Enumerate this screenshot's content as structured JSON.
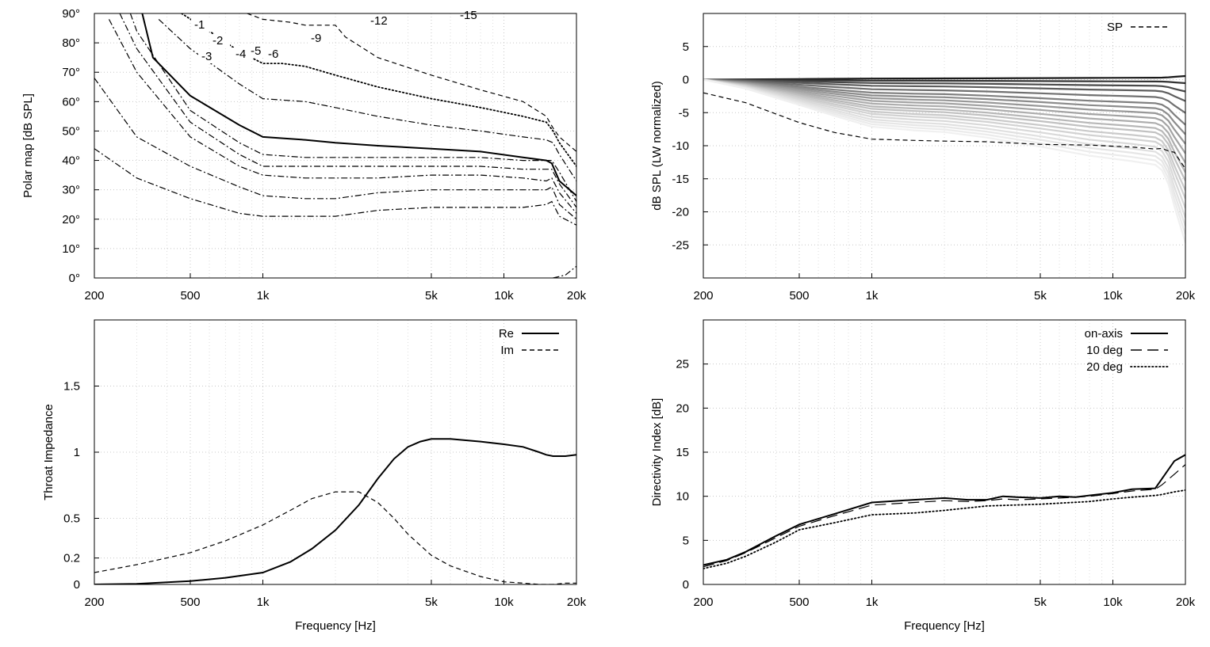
{
  "chart_data": [
    {
      "id": "polar",
      "type": "contour",
      "title": "",
      "xlabel": "",
      "ylabel": "Polar map [dB SPL]",
      "xscale": "log",
      "xlim": [
        200,
        20000
      ],
      "ylim": [
        0,
        90
      ],
      "xticks": [
        {
          "v": 200,
          "t": "200"
        },
        {
          "v": 500,
          "t": "500"
        },
        {
          "v": 1000,
          "t": "1k"
        },
        {
          "v": 5000,
          "t": "5k"
        },
        {
          "v": 10000,
          "t": "10k"
        },
        {
          "v": 20000,
          "t": "20k"
        }
      ],
      "yticks": [
        {
          "v": 0,
          "t": "0°"
        },
        {
          "v": 10,
          "t": "10°"
        },
        {
          "v": 20,
          "t": "20°"
        },
        {
          "v": 30,
          "t": "30°"
        },
        {
          "v": 40,
          "t": "40°"
        },
        {
          "v": 50,
          "t": "50°"
        },
        {
          "v": 60,
          "t": "60°"
        },
        {
          "v": 70,
          "t": "70°"
        },
        {
          "v": 80,
          "t": "80°"
        },
        {
          "v": 90,
          "t": "90°"
        }
      ],
      "grid": true,
      "series": [
        {
          "name": "-1",
          "style": "dashdot",
          "label": {
            "t": "-1",
            "x": 245,
            "y": 36
          },
          "x": [
            200,
            300,
            500,
            800,
            1000,
            1500,
            2000,
            3000,
            5000,
            8000,
            12000,
            15000,
            15800,
            17000,
            20000
          ],
          "y": [
            44,
            34,
            27,
            22,
            21,
            21,
            21,
            23,
            24,
            24,
            24,
            25,
            26,
            21,
            18
          ]
        },
        {
          "name": "-2",
          "style": "dashdot",
          "label": {
            "t": "-2",
            "x": 268,
            "y": 56
          },
          "x": [
            200,
            300,
            500,
            800,
            1000,
            1500,
            2000,
            3000,
            5000,
            8000,
            12000,
            15000,
            15800,
            17000,
            20000
          ],
          "y": [
            68,
            48,
            38,
            31,
            28,
            27,
            27,
            29,
            30,
            30,
            30,
            30,
            31,
            25,
            20
          ]
        },
        {
          "name": "-3",
          "style": "dashdot",
          "label": {
            "t": "-3",
            "x": 254,
            "y": 76
          },
          "x": [
            230,
            300,
            500,
            800,
            1000,
            1500,
            2000,
            3000,
            5000,
            8000,
            12000,
            15000,
            15800,
            17000,
            20000
          ],
          "y": [
            88,
            70,
            48,
            38,
            35,
            34,
            34,
            34,
            35,
            35,
            34,
            33,
            34,
            29,
            22
          ]
        },
        {
          "name": "-4",
          "style": "dashdot",
          "label": {
            "t": "-4",
            "x": 297,
            "y": 73
          },
          "x": [
            255,
            300,
            500,
            800,
            1000,
            1500,
            2000,
            3000,
            5000,
            8000,
            12000,
            15000,
            15800,
            17000,
            20000
          ],
          "y": [
            90,
            78,
            53,
            42,
            38,
            38,
            38,
            38,
            38,
            38,
            37,
            37,
            37,
            32,
            24
          ]
        },
        {
          "name": "-5",
          "style": "dashdot",
          "label": {
            "t": "-5",
            "x": 316,
            "y": 69
          },
          "x": [
            282,
            300,
            500,
            800,
            1000,
            1500,
            2000,
            3000,
            5000,
            8000,
            12000,
            15000,
            15800,
            17000,
            20000
          ],
          "y": [
            90,
            84,
            57,
            46,
            42,
            41,
            41,
            41,
            41,
            41,
            40,
            40,
            40,
            36,
            26
          ]
        },
        {
          "name": "-6",
          "style": "solid",
          "label": {
            "t": "-6",
            "x": 338,
            "y": 73
          },
          "x": [
            316,
            350,
            500,
            800,
            1000,
            1500,
            2000,
            3000,
            5000,
            8000,
            12000,
            15000,
            15800,
            17000,
            20000
          ],
          "y": [
            90,
            75,
            62,
            52,
            48,
            47,
            46,
            45,
            44,
            43,
            41,
            40,
            39,
            33,
            28
          ]
        },
        {
          "name": "-9",
          "style": "dashdot",
          "label": {
            "t": "-9",
            "x": 392,
            "y": 53
          },
          "x": [
            370,
            500,
            800,
            1000,
            1500,
            2000,
            3000,
            5000,
            8000,
            12000,
            15000,
            16000,
            17000,
            20000
          ],
          "y": [
            88,
            78,
            66,
            61,
            60,
            58,
            55,
            52,
            50,
            48,
            47,
            46,
            42,
            33
          ]
        },
        {
          "name": "-12",
          "style": "dotted",
          "label": {
            "t": "-12",
            "x": 467,
            "y": 31
          },
          "x": [
            460,
            600,
            800,
            1000,
            1200,
            1500,
            2000,
            3000,
            5000,
            8000,
            12000,
            15000,
            16000,
            17000,
            20000
          ],
          "y": [
            90,
            84,
            77,
            73,
            73,
            72,
            69,
            65,
            61,
            58,
            55,
            53,
            50,
            46,
            38
          ]
        },
        {
          "name": "-15",
          "style": "dashed",
          "label": {
            "t": "-15",
            "x": 580,
            "y": 24
          },
          "x": [
            860,
            1000,
            1300,
            1500,
            1800,
            2000,
            2200,
            3000,
            5000,
            8000,
            12000,
            15000,
            16000,
            17000,
            20000
          ],
          "y": [
            90,
            88,
            87,
            86,
            86,
            86,
            82,
            75,
            69,
            64,
            60,
            55,
            51,
            48,
            43
          ]
        },
        {
          "name": "bottom",
          "style": "dashdot",
          "label": null,
          "x": [
            16000,
            18000,
            20000
          ],
          "y": [
            0,
            1,
            4
          ]
        }
      ]
    },
    {
      "id": "spl",
      "type": "line",
      "title": "",
      "xlabel": "",
      "ylabel": "dB SPL (LW normalized)",
      "xscale": "log",
      "xlim": [
        200,
        20000
      ],
      "ylim": [
        -30,
        10
      ],
      "xticks": [
        {
          "v": 200,
          "t": "200"
        },
        {
          "v": 500,
          "t": "500"
        },
        {
          "v": 1000,
          "t": "1k"
        },
        {
          "v": 5000,
          "t": "5k"
        },
        {
          "v": 10000,
          "t": "10k"
        },
        {
          "v": 20000,
          "t": "20k"
        }
      ],
      "yticks": [
        {
          "v": 5,
          "t": "5"
        },
        {
          "v": 0,
          "t": "0"
        },
        {
          "v": -5,
          "t": "-5"
        },
        {
          "v": -10,
          "t": "-10"
        },
        {
          "v": -15,
          "t": "-15"
        },
        {
          "v": -20,
          "t": "-20"
        },
        {
          "v": -25,
          "t": "-25"
        }
      ],
      "grid": true,
      "legend": [
        {
          "name": "SP",
          "style": "dashed"
        }
      ],
      "family_x": [
        200,
        300,
        500,
        700,
        1000,
        1500,
        2000,
        3000,
        5000,
        8000,
        12000,
        15000,
        16000,
        17000,
        18000,
        20000
      ],
      "family_s": [
        0,
        0.1,
        0.28,
        0.4,
        0.52,
        0.56,
        0.58,
        0.64,
        0.74,
        0.84,
        0.9,
        0.94,
        1,
        1.15,
        1.4,
        1.8
      ],
      "family_mult": [
        0,
        -0.3,
        -1,
        -1.8,
        -2.8,
        -3.8,
        -4.6,
        -5.4,
        -6.2,
        -7,
        -7.8,
        -8.5,
        -9.3,
        -10,
        -10.8,
        -11.6,
        -12.3,
        -13,
        -13.7
      ],
      "family_colors": [
        "#1a1a1a",
        "#333333",
        "#4a4a4a",
        "#5e5e5e",
        "#707070",
        "#7f7f7f",
        "#8c8c8c",
        "#989898",
        "#a3a3a3",
        "#adadad",
        "#b7b7b7",
        "#c1c1c1",
        "#cacaca",
        "#d2d2d2",
        "#d9d9d9",
        "#e0e0e0",
        "#e6e6e6",
        "#ebebeb",
        "#f0f0f0"
      ],
      "series": [
        {
          "name": "SP",
          "style": "dashed",
          "x": [
            200,
            300,
            500,
            700,
            1000,
            1500,
            2000,
            3000,
            5000,
            8000,
            12000,
            15000,
            16000,
            17000,
            18000,
            20000
          ],
          "y": [
            -2,
            -3.5,
            -6.5,
            -8,
            -9,
            -9.2,
            -9.3,
            -9.4,
            -9.8,
            -9.9,
            -10.2,
            -10.5,
            -10.4,
            -10.8,
            -11,
            -13.5
          ]
        }
      ]
    },
    {
      "id": "impedance",
      "type": "line",
      "title": "",
      "xlabel": "Frequency [Hz]",
      "ylabel": "Throat Impedance",
      "xscale": "log",
      "xlim": [
        200,
        20000
      ],
      "ylim": [
        0,
        2
      ],
      "xticks": [
        {
          "v": 200,
          "t": "200"
        },
        {
          "v": 500,
          "t": "500"
        },
        {
          "v": 1000,
          "t": "1k"
        },
        {
          "v": 5000,
          "t": "5k"
        },
        {
          "v": 10000,
          "t": "10k"
        },
        {
          "v": 20000,
          "t": "20k"
        }
      ],
      "yticks": [
        {
          "v": 0,
          "t": "0"
        },
        {
          "v": 0.2,
          "t": "0.2"
        },
        {
          "v": 0.5,
          "t": "0.5"
        },
        {
          "v": 1,
          "t": "1"
        },
        {
          "v": 1.5,
          "t": "1.5"
        }
      ],
      "grid": true,
      "legend": [
        {
          "name": "Re",
          "style": "solid"
        },
        {
          "name": "Im",
          "style": "dashed"
        }
      ],
      "series": [
        {
          "name": "Re",
          "style": "solid",
          "x": [
            200,
            300,
            500,
            700,
            1000,
            1300,
            1600,
            2000,
            2500,
            3000,
            3500,
            4000,
            4500,
            5000,
            6000,
            8000,
            10000,
            12000,
            14000,
            15000,
            16000,
            18000,
            20000
          ],
          "y": [
            0,
            0.005,
            0.025,
            0.05,
            0.09,
            0.17,
            0.27,
            0.41,
            0.6,
            0.8,
            0.95,
            1.04,
            1.08,
            1.1,
            1.1,
            1.08,
            1.06,
            1.04,
            1,
            0.98,
            0.97,
            0.97,
            0.98
          ]
        },
        {
          "name": "Im",
          "style": "dashed",
          "x": [
            200,
            300,
            500,
            700,
            1000,
            1300,
            1600,
            2000,
            2500,
            3000,
            3500,
            4000,
            5000,
            6000,
            8000,
            10000,
            12000,
            14000,
            16000,
            18000,
            20000
          ],
          "y": [
            0.09,
            0.15,
            0.24,
            0.33,
            0.45,
            0.56,
            0.65,
            0.7,
            0.7,
            0.62,
            0.5,
            0.38,
            0.22,
            0.14,
            0.06,
            0.02,
            0.01,
            0,
            0,
            0.01,
            0.01
          ]
        }
      ]
    },
    {
      "id": "di",
      "type": "line",
      "title": "",
      "xlabel": "Frequency [Hz]",
      "ylabel": "Directivity Index [dB]",
      "xscale": "log",
      "xlim": [
        200,
        20000
      ],
      "ylim": [
        0,
        30
      ],
      "xticks": [
        {
          "v": 200,
          "t": "200"
        },
        {
          "v": 500,
          "t": "500"
        },
        {
          "v": 1000,
          "t": "1k"
        },
        {
          "v": 5000,
          "t": "5k"
        },
        {
          "v": 10000,
          "t": "10k"
        },
        {
          "v": 20000,
          "t": "20k"
        }
      ],
      "yticks": [
        {
          "v": 0,
          "t": "0"
        },
        {
          "v": 5,
          "t": "5"
        },
        {
          "v": 10,
          "t": "10"
        },
        {
          "v": 15,
          "t": "15"
        },
        {
          "v": 20,
          "t": "20"
        },
        {
          "v": 25,
          "t": "25"
        }
      ],
      "grid": true,
      "legend": [
        {
          "name": "on-axis",
          "style": "solid"
        },
        {
          "name": "10 deg",
          "style": "longdash"
        },
        {
          "name": "20 deg",
          "style": "dotted"
        }
      ],
      "series": [
        {
          "name": "on-axis",
          "style": "solid",
          "x": [
            200,
            250,
            300,
            400,
            500,
            700,
            1000,
            1500,
            2000,
            2500,
            3000,
            3500,
            4000,
            5000,
            6000,
            7000,
            8000,
            10000,
            12000,
            15000,
            16000,
            18000,
            20000
          ],
          "y": [
            2.2,
            2.8,
            3.7,
            5.5,
            6.8,
            8,
            9.3,
            9.6,
            9.8,
            9.6,
            9.6,
            10,
            9.9,
            9.8,
            10,
            9.9,
            10.1,
            10.4,
            10.8,
            10.9,
            12,
            14,
            14.7
          ]
        },
        {
          "name": "10 deg",
          "style": "longdash",
          "x": [
            200,
            250,
            300,
            400,
            500,
            700,
            1000,
            1500,
            2000,
            2500,
            3000,
            3500,
            4000,
            5000,
            6000,
            7000,
            8000,
            10000,
            12000,
            15000,
            16000,
            18000,
            20000
          ],
          "y": [
            2,
            2.7,
            3.6,
            5.3,
            6.6,
            7.8,
            9,
            9.3,
            9.5,
            9.4,
            9.5,
            9.7,
            9.6,
            9.7,
            9.8,
            9.9,
            10,
            10.3,
            10.6,
            10.8,
            11.3,
            12.5,
            13.6
          ]
        },
        {
          "name": "20 deg",
          "style": "dotted",
          "x": [
            200,
            250,
            300,
            400,
            500,
            700,
            1000,
            1500,
            2000,
            3000,
            5000,
            8000,
            10000,
            12000,
            15000,
            16000,
            18000,
            20000
          ],
          "y": [
            1.8,
            2.4,
            3.2,
            4.8,
            6.2,
            7,
            7.9,
            8.1,
            8.4,
            8.9,
            9.1,
            9.4,
            9.7,
            9.9,
            10.1,
            10.2,
            10.5,
            10.7
          ]
        }
      ]
    }
  ]
}
